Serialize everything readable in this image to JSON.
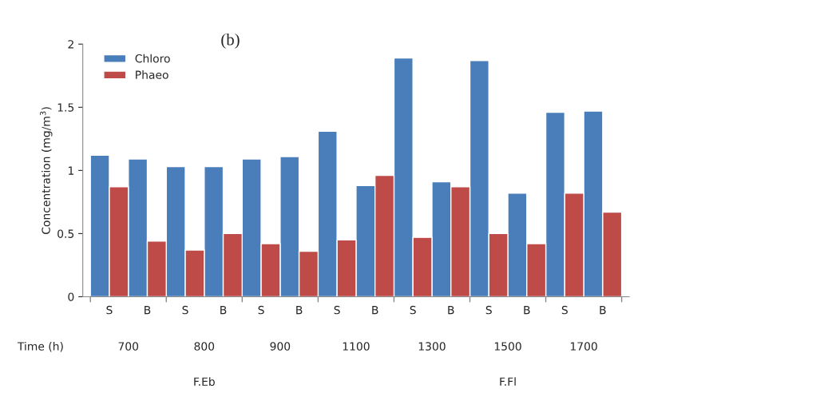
{
  "chart_data": {
    "type": "bar",
    "title": "(b)",
    "ylabel": "Concentration (mg/m$^{3}$)",
    "xlabel": "Time (h)",
    "categories": [
      "S",
      "B",
      "S",
      "B",
      "S",
      "B",
      "S",
      "B",
      "S",
      "B",
      "S",
      "B",
      "S",
      "B"
    ],
    "series": [
      {
        "name": "Chloro",
        "color": "#4a7ebb",
        "values": [
          1.12,
          1.09,
          1.03,
          1.03,
          1.09,
          1.11,
          1.31,
          0.88,
          1.89,
          0.91,
          1.87,
          0.82,
          1.46,
          1.47
        ]
      },
      {
        "name": "Phaeo",
        "color": "#be4b48",
        "values": [
          0.87,
          0.44,
          0.37,
          0.5,
          0.42,
          0.36,
          0.45,
          0.96,
          0.47,
          0.87,
          0.5,
          0.42,
          0.82,
          0.67
        ]
      }
    ],
    "annotations": [
      "700",
      "800",
      "900",
      "1100",
      "1300",
      "1500",
      "1700",
      "F.Eb",
      "F.Fl"
    ],
    "ylim": [
      0,
      2
    ],
    "yticks": [
      0,
      0.5,
      1,
      1.5,
      2
    ],
    "legend": "top left",
    "grid": false
  }
}
